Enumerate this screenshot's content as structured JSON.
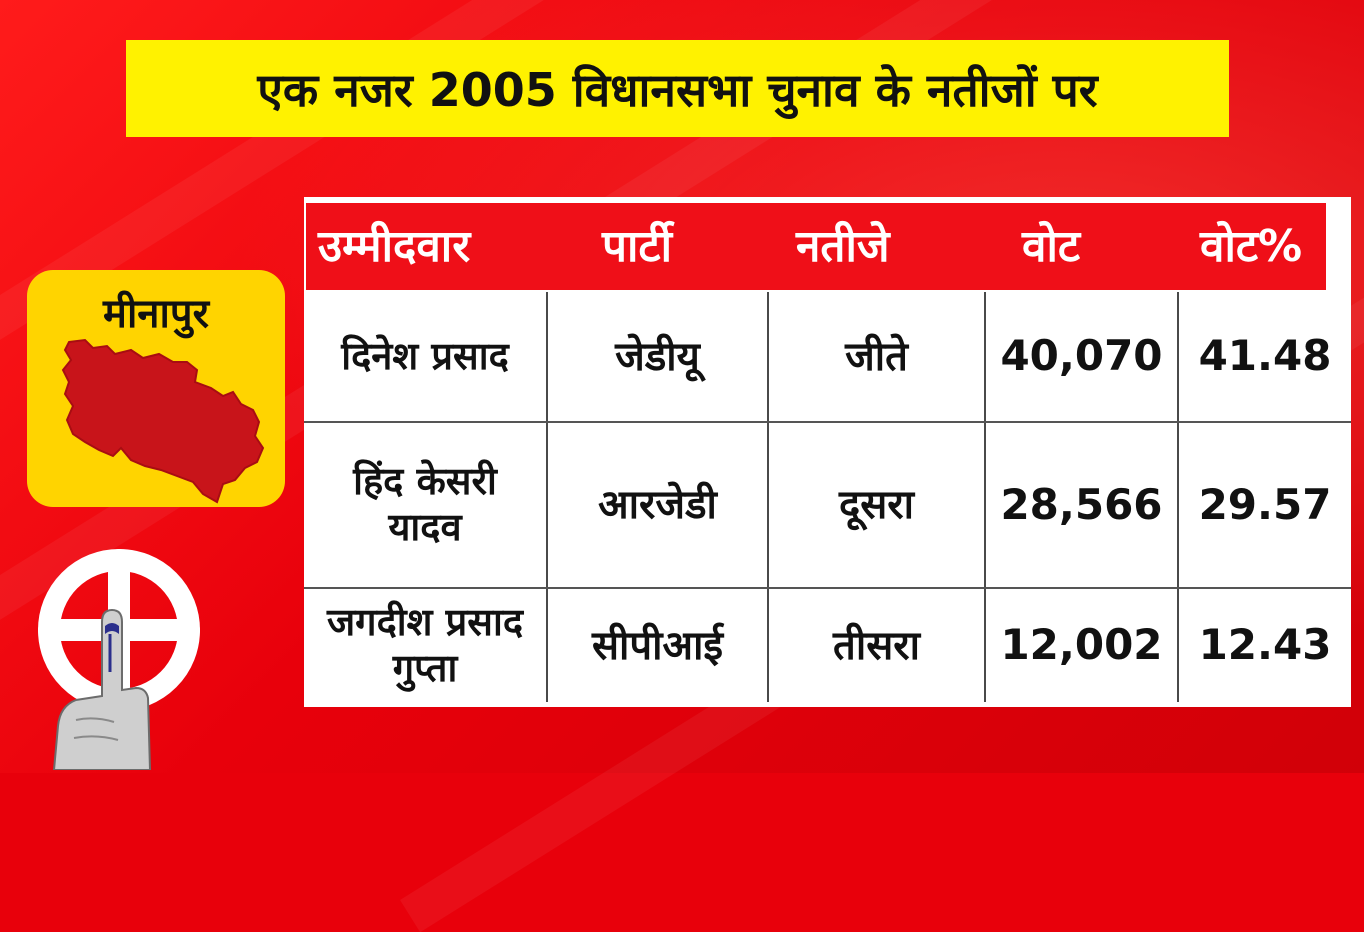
{
  "title": "एक नजर 2005 विधानसभा चुनाव के नतीजों पर",
  "constituency": {
    "name": "मीनापुर",
    "map_icon": "constituency-map-icon"
  },
  "table": {
    "headers": {
      "candidate": "उम्मीदवार",
      "party": "पार्टी",
      "result": "नतीजे",
      "votes": "वोट",
      "vote_pct": "वोट%"
    },
    "rows": [
      {
        "candidate": "दिनेश प्रसाद",
        "party": "जेडीयू",
        "result": "जीते",
        "votes": "40,070",
        "vote_pct": "41.48"
      },
      {
        "candidate": "हिंद केसरी यादव",
        "party": "आरजेडी",
        "result": "दूसरा",
        "votes": "28,566",
        "vote_pct": "29.57"
      },
      {
        "candidate": "जगदीश प्रसाद गुप्ता",
        "party": "सीपीआई",
        "result": "तीसरा",
        "votes": "12,002",
        "vote_pct": "12.43"
      }
    ]
  },
  "colors": {
    "background_red": "#e8000b",
    "title_yellow": "#fff200",
    "card_yellow": "#ffd400",
    "header_red": "#ef0f18",
    "map_red": "#c8141a"
  },
  "icons": {
    "voting_symbol": "swastika-ballot-icon",
    "inked_finger": "inked-finger-icon"
  }
}
